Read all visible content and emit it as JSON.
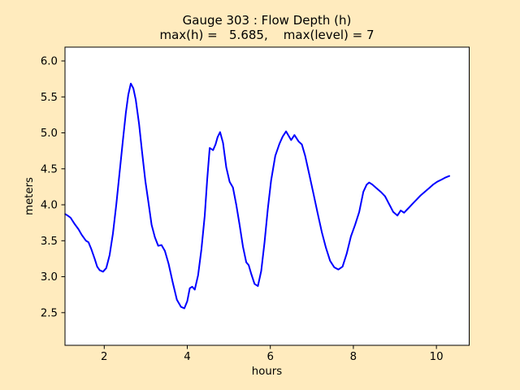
{
  "figure": {
    "background_color": "#ffebbe",
    "plot_background_color": "#ffffff",
    "frame_color": "#000000",
    "text_color": "#000000"
  },
  "chart_data": {
    "type": "line",
    "title": "Gauge 303 : Flow Depth (h)",
    "subtitle": "max(h) =   5.685,    max(level) = 7",
    "xlabel": "hours",
    "ylabel": "meters",
    "xlim": [
      1.055,
      10.79
    ],
    "ylim": [
      2.046,
      6.192
    ],
    "grid": false,
    "legend_position": "none",
    "xticks": {
      "values": [
        2,
        4,
        6,
        8,
        10
      ],
      "labels": [
        "2",
        "4",
        "6",
        "8",
        "10"
      ]
    },
    "yticks": {
      "values": [
        2.5,
        3.0,
        3.5,
        4.0,
        4.5,
        5.0,
        5.5,
        6.0
      ],
      "labels": [
        "2.5",
        "3.0",
        "3.5",
        "4.0",
        "4.5",
        "5.0",
        "5.5",
        "6.0"
      ]
    },
    "annotations": {
      "max_h": 5.685,
      "max_level": 7,
      "gauge_id": "303"
    },
    "series": [
      {
        "name": "flow depth h",
        "color": "#0000ff",
        "line_width": 2,
        "x": [
          1.06,
          1.12,
          1.19,
          1.29,
          1.38,
          1.46,
          1.56,
          1.62,
          1.69,
          1.77,
          1.83,
          1.89,
          1.97,
          2.05,
          2.13,
          2.21,
          2.29,
          2.37,
          2.45,
          2.52,
          2.58,
          2.64,
          2.7,
          2.76,
          2.84,
          2.91,
          2.99,
          3.06,
          3.14,
          3.22,
          3.3,
          3.38,
          3.46,
          3.55,
          3.65,
          3.75,
          3.85,
          3.93,
          4.0,
          4.06,
          4.12,
          4.18,
          4.26,
          4.34,
          4.42,
          4.48,
          4.54,
          4.62,
          4.68,
          4.73,
          4.79,
          4.86,
          4.94,
          5.02,
          5.1,
          5.18,
          5.26,
          5.34,
          5.42,
          5.48,
          5.54,
          5.62,
          5.7,
          5.78,
          5.86,
          5.94,
          6.02,
          6.12,
          6.22,
          6.3,
          6.38,
          6.5,
          6.58,
          6.68,
          6.76,
          6.84,
          6.94,
          7.04,
          7.14,
          7.24,
          7.34,
          7.44,
          7.54,
          7.64,
          7.74,
          7.84,
          7.94,
          8.04,
          8.14,
          8.24,
          8.32,
          8.38,
          8.46,
          8.56,
          8.66,
          8.76,
          8.86,
          8.96,
          9.06,
          9.14,
          9.22,
          9.32,
          9.42,
          9.52,
          9.62,
          9.72,
          9.82,
          9.92,
          10.02,
          10.12,
          10.22,
          10.31
        ],
        "y": [
          3.87,
          3.85,
          3.82,
          3.73,
          3.66,
          3.58,
          3.5,
          3.48,
          3.38,
          3.25,
          3.14,
          3.09,
          3.07,
          3.12,
          3.3,
          3.6,
          4.0,
          4.45,
          4.9,
          5.28,
          5.53,
          5.685,
          5.62,
          5.46,
          5.12,
          4.74,
          4.33,
          4.05,
          3.72,
          3.55,
          3.43,
          3.44,
          3.36,
          3.18,
          2.92,
          2.68,
          2.58,
          2.56,
          2.66,
          2.84,
          2.86,
          2.82,
          3.02,
          3.38,
          3.85,
          4.35,
          4.79,
          4.76,
          4.84,
          4.94,
          5.01,
          4.86,
          4.52,
          4.32,
          4.24,
          4.0,
          3.72,
          3.42,
          3.2,
          3.16,
          3.04,
          2.9,
          2.87,
          3.08,
          3.48,
          3.94,
          4.34,
          4.68,
          4.85,
          4.95,
          5.02,
          4.9,
          4.97,
          4.88,
          4.84,
          4.68,
          4.42,
          4.15,
          3.88,
          3.62,
          3.4,
          3.22,
          3.13,
          3.1,
          3.14,
          3.32,
          3.56,
          3.72,
          3.9,
          4.18,
          4.28,
          4.31,
          4.28,
          4.23,
          4.18,
          4.12,
          4.01,
          3.9,
          3.85,
          3.92,
          3.89,
          3.95,
          4.01,
          4.07,
          4.13,
          4.18,
          4.23,
          4.28,
          4.32,
          4.35,
          4.38,
          4.4
        ]
      }
    ]
  }
}
